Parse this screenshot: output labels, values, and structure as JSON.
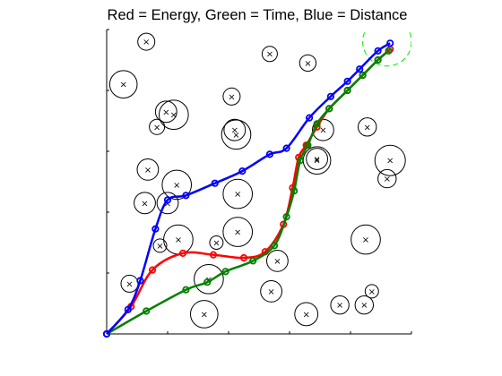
{
  "chart_data": {
    "type": "line",
    "title": "Red = Energy, Green = Time, Blue = Distance",
    "xlim": [
      0,
      10
    ],
    "ylim": [
      0,
      10
    ],
    "grid": false,
    "goal": {
      "x": 9.2,
      "y": 9.6,
      "r": 0.8,
      "color": "#00ee00"
    },
    "obstacles": [
      {
        "x": 1.3,
        "y": 9.6,
        "r": 0.28
      },
      {
        "x": 0.55,
        "y": 8.2,
        "r": 0.45
      },
      {
        "x": 1.95,
        "y": 7.3,
        "r": 0.35
      },
      {
        "x": 2.2,
        "y": 7.2,
        "r": 0.48
      },
      {
        "x": 1.65,
        "y": 6.8,
        "r": 0.25
      },
      {
        "x": 4.1,
        "y": 7.8,
        "r": 0.28
      },
      {
        "x": 5.35,
        "y": 9.2,
        "r": 0.25
      },
      {
        "x": 6.6,
        "y": 8.9,
        "r": 0.27
      },
      {
        "x": 4.2,
        "y": 6.7,
        "r": 0.35
      },
      {
        "x": 4.25,
        "y": 6.55,
        "r": 0.48
      },
      {
        "x": 7.1,
        "y": 6.7,
        "r": 0.35
      },
      {
        "x": 8.55,
        "y": 6.8,
        "r": 0.3
      },
      {
        "x": 6.9,
        "y": 5.75,
        "r": 0.35
      },
      {
        "x": 6.9,
        "y": 5.7,
        "r": 0.45
      },
      {
        "x": 9.3,
        "y": 5.7,
        "r": 0.5
      },
      {
        "x": 9.2,
        "y": 5.1,
        "r": 0.3
      },
      {
        "x": 1.35,
        "y": 5.4,
        "r": 0.35
      },
      {
        "x": 2.3,
        "y": 4.9,
        "r": 0.48
      },
      {
        "x": 1.25,
        "y": 4.3,
        "r": 0.35
      },
      {
        "x": 2.0,
        "y": 4.3,
        "r": 0.35
      },
      {
        "x": 4.3,
        "y": 4.6,
        "r": 0.48
      },
      {
        "x": 1.75,
        "y": 2.9,
        "r": 0.22
      },
      {
        "x": 2.35,
        "y": 3.1,
        "r": 0.48
      },
      {
        "x": 3.6,
        "y": 3.0,
        "r": 0.22
      },
      {
        "x": 4.3,
        "y": 3.35,
        "r": 0.48
      },
      {
        "x": 8.5,
        "y": 3.1,
        "r": 0.48
      },
      {
        "x": 5.6,
        "y": 2.4,
        "r": 0.35
      },
      {
        "x": 0.75,
        "y": 1.65,
        "r": 0.28
      },
      {
        "x": 3.35,
        "y": 1.8,
        "r": 0.48
      },
      {
        "x": 5.4,
        "y": 1.4,
        "r": 0.35
      },
      {
        "x": 8.7,
        "y": 1.4,
        "r": 0.22
      },
      {
        "x": 7.65,
        "y": 0.95,
        "r": 0.3
      },
      {
        "x": 8.45,
        "y": 0.95,
        "r": 0.3
      },
      {
        "x": 3.2,
        "y": 0.65,
        "r": 0.45
      },
      {
        "x": 6.55,
        "y": 0.65,
        "r": 0.38
      }
    ],
    "series": [
      {
        "color": "#ff0000",
        "x": [
          0,
          0.8,
          1.5,
          2.5,
          3.5,
          4.5,
          5.2,
          5.8,
          6.1,
          6.3,
          6.55,
          6.9,
          7.3,
          7.9,
          8.4,
          8.9,
          9.3
        ],
        "y": [
          0,
          0.9,
          2.1,
          2.65,
          2.6,
          2.5,
          2.7,
          3.6,
          4.8,
          5.8,
          6.2,
          6.8,
          7.4,
          8.0,
          8.5,
          9.0,
          9.35
        ]
      },
      {
        "color": "#008000",
        "x": [
          0,
          1.3,
          2.6,
          3.3,
          3.9,
          4.8,
          5.5,
          5.9,
          6.15,
          6.35,
          6.6,
          6.9,
          7.3,
          7.9,
          8.4,
          8.9,
          9.25
        ],
        "y": [
          0,
          0.75,
          1.45,
          1.7,
          2.05,
          2.4,
          2.9,
          3.85,
          4.7,
          5.7,
          6.2,
          6.9,
          7.4,
          8.0,
          8.5,
          9.0,
          9.3
        ]
      },
      {
        "color": "#0000ff",
        "x": [
          0,
          0.7,
          1.1,
          1.6,
          2.0,
          2.6,
          3.55,
          4.45,
          5.35,
          5.9,
          6.65,
          7.35,
          7.9,
          8.3,
          8.9,
          9.3
        ],
        "y": [
          0,
          0.8,
          1.75,
          3.45,
          4.4,
          4.55,
          4.95,
          5.35,
          5.9,
          6.1,
          7.1,
          7.8,
          8.3,
          8.7,
          9.3,
          9.55
        ]
      }
    ]
  }
}
